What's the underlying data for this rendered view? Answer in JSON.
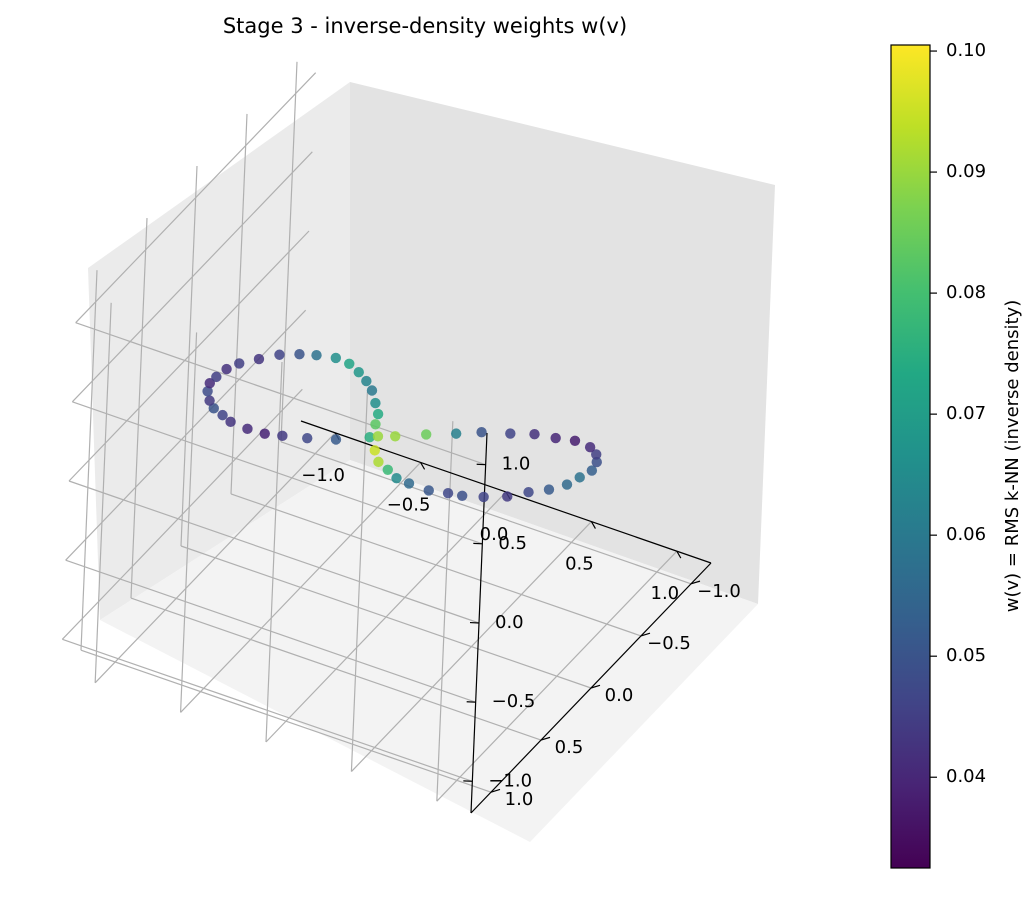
{
  "chart_data": {
    "type": "scatter",
    "title": "Stage 3 - inverse-density weights w(v)",
    "x_ticks": [
      "−1.0",
      "−0.5",
      "0.0",
      "0.5",
      "1.0"
    ],
    "y_ticks": [
      "−1.0",
      "−0.5",
      "0.0",
      "0.5",
      "1.0"
    ],
    "z_ticks": [
      "−1.0",
      "−0.5",
      "0.0",
      "0.5",
      "1.0"
    ],
    "x_tick_values": [
      -1.0,
      -0.5,
      0.0,
      0.5,
      1.0
    ],
    "y_tick_values": [
      -1.0,
      -0.5,
      0.0,
      0.5,
      1.0
    ],
    "z_tick_values": [
      -1.0,
      -0.5,
      0.0,
      0.5,
      1.0
    ],
    "xlim": [
      -1.2,
      1.2
    ],
    "ylim": [
      -1.2,
      1.2
    ],
    "zlim": [
      -1.2,
      1.2
    ],
    "grid": true,
    "projection": "3d",
    "colormap": "viridis",
    "colorbar": {
      "label": "w(v) = RMS k-NN  (inverse density)",
      "ticks": [
        "0.04",
        "0.05",
        "0.06",
        "0.07",
        "0.08",
        "0.09",
        "0.10"
      ],
      "tick_values": [
        0.04,
        0.05,
        0.06,
        0.07,
        0.08,
        0.09,
        0.1
      ],
      "range": [
        0.0325,
        0.1005
      ]
    },
    "series": [
      {
        "shape": "figure-eight (lemniscate) curve",
        "x": [
          -0.98,
          -0.96,
          -0.93,
          -0.88,
          -0.8,
          -0.73,
          -0.65,
          -0.58,
          -0.47,
          -0.38,
          -0.3,
          -0.2,
          -0.1,
          0.0,
          0.07,
          0.16,
          0.25,
          0.33,
          0.43,
          0.52,
          0.61,
          0.7,
          0.8,
          0.87,
          0.93,
          0.97,
          0.99,
          0.99,
          0.97,
          0.93,
          0.88,
          0.81,
          0.73,
          0.67,
          0.58,
          0.47,
          0.38,
          0.3,
          0.2,
          0.11,
          0.02,
          -0.08,
          -0.15,
          -0.24,
          -0.34,
          -0.43,
          -0.52,
          -0.61,
          -0.7,
          -0.79,
          -0.85,
          -0.91,
          -0.95,
          -0.98
        ],
        "y": [
          0.0,
          0.14,
          0.26,
          0.37,
          0.49,
          0.57,
          0.62,
          0.66,
          0.68,
          0.66,
          0.62,
          0.54,
          0.42,
          0.25,
          0.11,
          -0.05,
          -0.2,
          -0.32,
          -0.44,
          -0.53,
          -0.59,
          -0.63,
          -0.61,
          -0.55,
          -0.45,
          -0.33,
          -0.17,
          -0.04,
          0.11,
          0.25,
          0.38,
          0.5,
          0.58,
          0.62,
          0.66,
          0.67,
          0.64,
          0.59,
          0.51,
          0.39,
          0.2,
          0.05,
          -0.1,
          -0.23,
          -0.37,
          -0.47,
          -0.55,
          -0.61,
          -0.63,
          -0.59,
          -0.52,
          -0.42,
          -0.28,
          -0.13
        ],
        "z": [
          0.0,
          0.05,
          0.1,
          0.14,
          0.19,
          0.22,
          0.24,
          0.25,
          0.26,
          0.25,
          0.24,
          0.21,
          0.16,
          0.1,
          0.04,
          -0.02,
          -0.08,
          -0.12,
          -0.17,
          -0.2,
          -0.23,
          -0.24,
          -0.23,
          -0.21,
          -0.17,
          -0.13,
          -0.06,
          -0.02,
          0.04,
          0.1,
          0.14,
          0.19,
          0.22,
          0.24,
          0.25,
          0.26,
          0.24,
          0.23,
          0.19,
          0.15,
          0.08,
          0.02,
          -0.04,
          -0.09,
          -0.14,
          -0.18,
          -0.21,
          -0.23,
          -0.24,
          -0.23,
          -0.2,
          -0.16,
          -0.11,
          -0.05
        ],
        "c": [
          0.042,
          0.045,
          0.041,
          0.048,
          0.044,
          0.05,
          0.046,
          0.043,
          0.041,
          0.039,
          0.044,
          0.047,
          0.052,
          0.075,
          0.09,
          0.085,
          0.062,
          0.05,
          0.046,
          0.042,
          0.04,
          0.038,
          0.041,
          0.045,
          0.049,
          0.053,
          0.058,
          0.056,
          0.052,
          0.047,
          0.044,
          0.046,
          0.049,
          0.047,
          0.051,
          0.056,
          0.065,
          0.078,
          0.092,
          0.095,
          0.09,
          0.083,
          0.074,
          0.066,
          0.06,
          0.063,
          0.068,
          0.072,
          0.066,
          0.058,
          0.05,
          0.046,
          0.043,
          0.045
        ]
      }
    ]
  }
}
